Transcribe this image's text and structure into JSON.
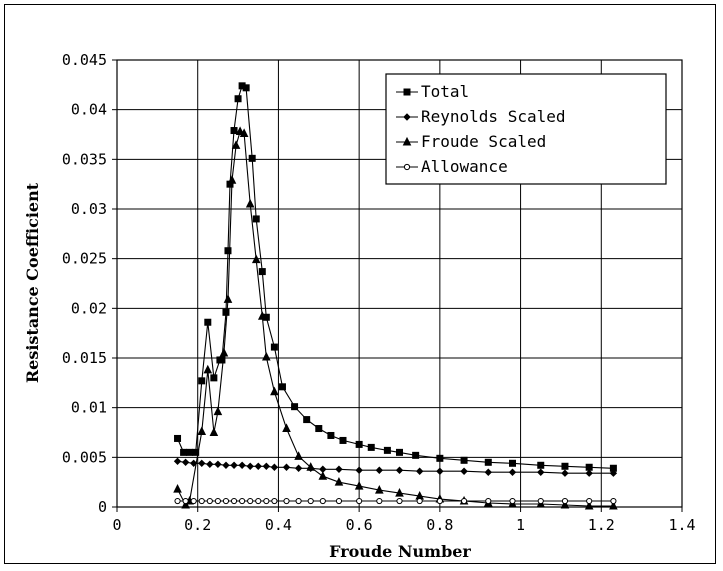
{
  "chart_data": {
    "type": "line",
    "title": "",
    "xlabel": "Froude Number",
    "ylabel": "Resistance Coefficient",
    "xlim": [
      0,
      1.4
    ],
    "ylim": [
      0,
      0.045
    ],
    "xticks": [
      0,
      0.2,
      0.4,
      0.6,
      0.8,
      1,
      1.2,
      1.4
    ],
    "xtick_labels": [
      "0",
      "0.2",
      "0.4",
      "0.6",
      "0.8",
      "1",
      "1.2",
      "1.4"
    ],
    "yticks": [
      0,
      0.005,
      0.01,
      0.015,
      0.02,
      0.025,
      0.03,
      0.035,
      0.04,
      0.045
    ],
    "ytick_labels": [
      "0",
      "0.005",
      "0.01",
      "0.015",
      "0.02",
      "0.025",
      "0.03",
      "0.035",
      "0.04",
      "0.045"
    ],
    "grid": true,
    "legend_position": "top-right",
    "series": [
      {
        "name": "Total",
        "marker": "square",
        "x": [
          0.15,
          0.165,
          0.18,
          0.195,
          0.21,
          0.225,
          0.24,
          0.255,
          0.26,
          0.27,
          0.275,
          0.28,
          0.29,
          0.3,
          0.31,
          0.32,
          0.335,
          0.345,
          0.36,
          0.37,
          0.39,
          0.41,
          0.44,
          0.47,
          0.5,
          0.53,
          0.56,
          0.6,
          0.63,
          0.67,
          0.7,
          0.74,
          0.8,
          0.86,
          0.92,
          0.98,
          1.05,
          1.11,
          1.17,
          1.23
        ],
        "y": [
          0.0069,
          0.0055,
          0.0055,
          0.0055,
          0.0127,
          0.0186,
          0.013,
          0.0148,
          0.0148,
          0.0196,
          0.0258,
          0.0325,
          0.0379,
          0.0411,
          0.0424,
          0.0422,
          0.0351,
          0.029,
          0.0237,
          0.0191,
          0.0161,
          0.0121,
          0.0101,
          0.0088,
          0.0079,
          0.0072,
          0.0067,
          0.0063,
          0.006,
          0.0057,
          0.0055,
          0.0052,
          0.0049,
          0.0047,
          0.0045,
          0.0044,
          0.0042,
          0.0041,
          0.004,
          0.0039
        ]
      },
      {
        "name": "Reynolds Scaled",
        "marker": "diamond",
        "x": [
          0.15,
          0.17,
          0.19,
          0.21,
          0.23,
          0.25,
          0.27,
          0.29,
          0.31,
          0.33,
          0.35,
          0.37,
          0.39,
          0.42,
          0.45,
          0.48,
          0.51,
          0.55,
          0.6,
          0.65,
          0.7,
          0.75,
          0.8,
          0.86,
          0.92,
          0.98,
          1.05,
          1.11,
          1.17,
          1.23
        ],
        "y": [
          0.0046,
          0.0045,
          0.0044,
          0.0044,
          0.0043,
          0.0043,
          0.0042,
          0.0042,
          0.0042,
          0.0041,
          0.0041,
          0.0041,
          0.004,
          0.004,
          0.0039,
          0.0039,
          0.0038,
          0.0038,
          0.0037,
          0.0037,
          0.0037,
          0.0036,
          0.0036,
          0.0036,
          0.0035,
          0.0035,
          0.0035,
          0.0034,
          0.0034,
          0.0034
        ]
      },
      {
        "name": "Froude Scaled",
        "marker": "triangle",
        "x": [
          0.15,
          0.17,
          0.18,
          0.21,
          0.225,
          0.24,
          0.25,
          0.265,
          0.275,
          0.285,
          0.295,
          0.305,
          0.315,
          0.33,
          0.345,
          0.36,
          0.37,
          0.39,
          0.42,
          0.45,
          0.48,
          0.51,
          0.55,
          0.6,
          0.65,
          0.7,
          0.75,
          0.8,
          0.86,
          0.92,
          0.98,
          1.05,
          1.11,
          1.17,
          1.23
        ],
        "y": [
          0.0018,
          0.0002,
          0.0006,
          0.0076,
          0.0138,
          0.0075,
          0.0096,
          0.0155,
          0.0209,
          0.0329,
          0.0364,
          0.0378,
          0.0376,
          0.0305,
          0.0249,
          0.0192,
          0.0151,
          0.0116,
          0.0079,
          0.0051,
          0.004,
          0.0031,
          0.0025,
          0.0021,
          0.0017,
          0.0014,
          0.0011,
          0.0008,
          0.0006,
          0.0004,
          0.0003,
          0.0003,
          0.0002,
          0.0001,
          0.0001
        ]
      },
      {
        "name": "Allowance",
        "marker": "circle",
        "x": [
          0.15,
          0.17,
          0.19,
          0.21,
          0.23,
          0.25,
          0.27,
          0.29,
          0.31,
          0.33,
          0.35,
          0.37,
          0.39,
          0.42,
          0.45,
          0.48,
          0.51,
          0.55,
          0.6,
          0.65,
          0.7,
          0.75,
          0.8,
          0.86,
          0.92,
          0.98,
          1.05,
          1.11,
          1.17,
          1.23
        ],
        "y": [
          0.0006,
          0.0006,
          0.0006,
          0.0006,
          0.0006,
          0.0006,
          0.0006,
          0.0006,
          0.0006,
          0.0006,
          0.0006,
          0.0006,
          0.0006,
          0.0006,
          0.0006,
          0.0006,
          0.0006,
          0.0006,
          0.0006,
          0.0006,
          0.0006,
          0.0006,
          0.0006,
          0.0006,
          0.0006,
          0.0006,
          0.0006,
          0.0006,
          0.0006,
          0.0006
        ]
      }
    ]
  }
}
